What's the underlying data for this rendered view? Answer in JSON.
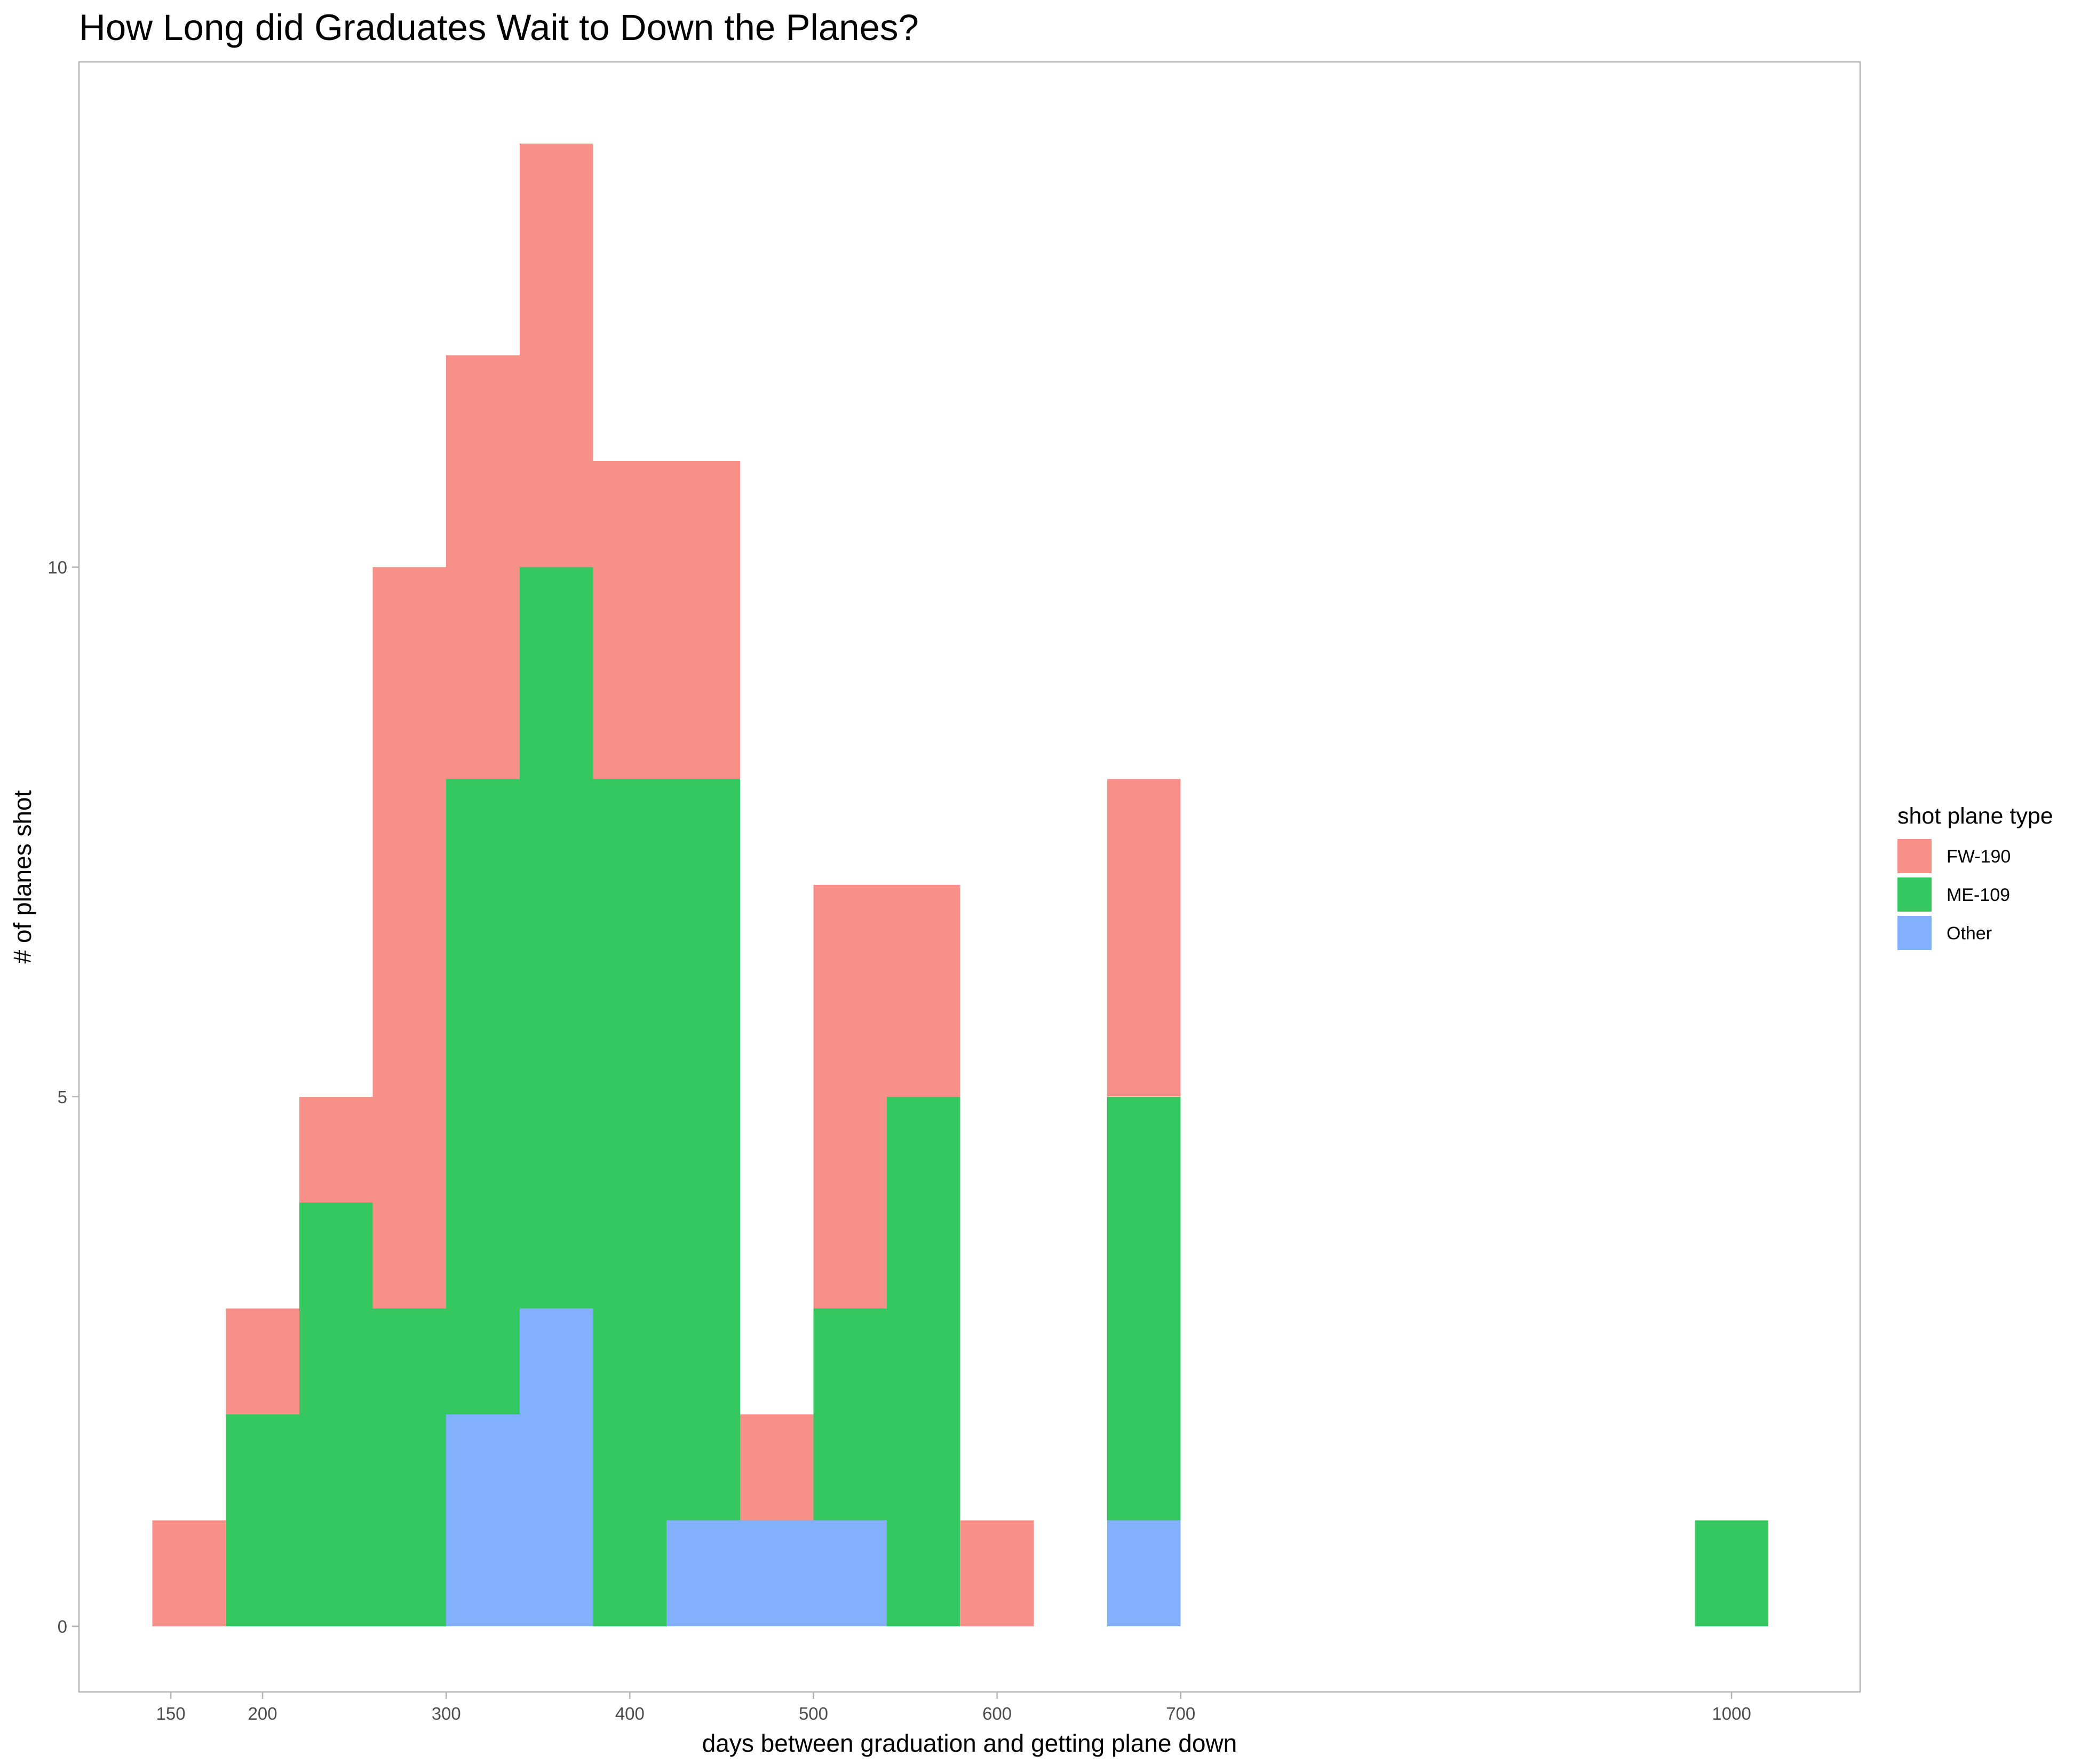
{
  "chart_data": {
    "type": "histogram-stacked",
    "title": "How Long did Graduates Wait to Down the Planes?",
    "xlabel": "days between graduation and getting plane down",
    "ylabel": "# of planes shot",
    "xlim": [
      100,
      1070
    ],
    "ylim": [
      -0.62,
      14.77
    ],
    "x_ticks": [
      150,
      200,
      300,
      400,
      500,
      600,
      700,
      1000
    ],
    "x_tick_labels": [
      "150",
      "200",
      "300",
      "400",
      "500",
      "600",
      "700",
      "1000"
    ],
    "y_ticks": [
      0,
      5,
      10
    ],
    "y_tick_labels": [
      "0",
      "5",
      "10"
    ],
    "grid": false,
    "legend": {
      "title": "shot plane type",
      "placement": "right"
    },
    "series": [
      {
        "name": "FW-190",
        "color": "#f8908a"
      },
      {
        "name": "ME-109",
        "color": "#35c861"
      },
      {
        "name": "Other",
        "color": "#82b0fd"
      }
    ],
    "bins": [
      {
        "x0": 140,
        "x1": 180,
        "FW-190": 1,
        "ME-109": 0,
        "Other": 0
      },
      {
        "x0": 180,
        "x1": 220,
        "FW-190": 1,
        "ME-109": 2,
        "Other": 0
      },
      {
        "x0": 220,
        "x1": 260,
        "FW-190": 1,
        "ME-109": 4,
        "Other": 0
      },
      {
        "x0": 260,
        "x1": 300,
        "FW-190": 7,
        "ME-109": 3,
        "Other": 0
      },
      {
        "x0": 300,
        "x1": 340,
        "FW-190": 4,
        "ME-109": 6,
        "Other": 2
      },
      {
        "x0": 340,
        "x1": 380,
        "FW-190": 4,
        "ME-109": 7,
        "Other": 3
      },
      {
        "x0": 380,
        "x1": 420,
        "FW-190": 3,
        "ME-109": 8,
        "Other": 0
      },
      {
        "x0": 420,
        "x1": 460,
        "FW-190": 3,
        "ME-109": 7,
        "Other": 1
      },
      {
        "x0": 460,
        "x1": 500,
        "FW-190": 1,
        "ME-109": 0,
        "Other": 1
      },
      {
        "x0": 500,
        "x1": 540,
        "FW-190": 4,
        "ME-109": 2,
        "Other": 1
      },
      {
        "x0": 540,
        "x1": 580,
        "FW-190": 2,
        "ME-109": 5,
        "Other": 0
      },
      {
        "x0": 580,
        "x1": 620,
        "FW-190": 1,
        "ME-109": 0,
        "Other": 0
      },
      {
        "x0": 660,
        "x1": 700,
        "FW-190": 3,
        "ME-109": 4,
        "Other": 1
      },
      {
        "x0": 980,
        "x1": 1020,
        "FW-190": 0,
        "ME-109": 1,
        "Other": 0
      }
    ]
  }
}
